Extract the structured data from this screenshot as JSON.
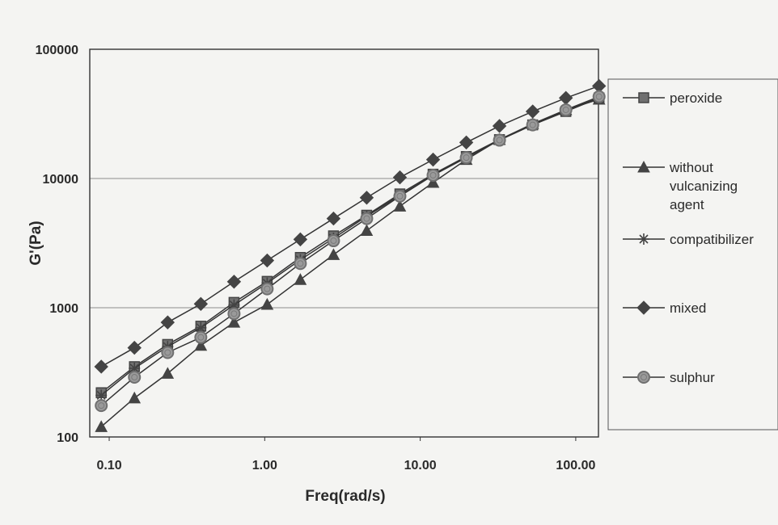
{
  "chart_data": {
    "type": "line",
    "xlabel": "Freq(rad/s)",
    "ylabel": "G'(Pa)",
    "xscale": "log",
    "yscale": "log",
    "xlim": [
      0.075,
      140
    ],
    "ylim": [
      100,
      100000
    ],
    "grid": "horizontal",
    "legend_position": "right",
    "x_tick_labels": [
      "0.10",
      "1.00",
      "10.00",
      "100.00"
    ],
    "y_tick_labels": [
      "100",
      "1000",
      "10000",
      "100000"
    ],
    "x": [
      0.0889,
      0.1453,
      0.2376,
      0.3883,
      0.6349,
      1.037,
      1.695,
      2.77,
      4.527,
      7.401,
      12.1,
      19.78,
      32.33,
      52.86,
      86.4,
      141.2
    ],
    "series": [
      {
        "name": "peroxide",
        "marker": "square",
        "values": [
          220,
          350,
          520,
          720,
          1100,
          1600,
          2450,
          3600,
          5200,
          7600,
          10800,
          14800,
          20000,
          26000,
          33000,
          42000
        ]
      },
      {
        "name": "without vulcanizing agent",
        "marker": "triangle",
        "values": [
          120,
          200,
          310,
          510,
          770,
          1060,
          1650,
          2570,
          3950,
          6100,
          9300,
          14000,
          20000,
          26500,
          34000,
          41000
        ]
      },
      {
        "name": "compatibilizer",
        "marker": "asterisk",
        "values": [
          210,
          340,
          500,
          700,
          1050,
          1550,
          2350,
          3450,
          5100,
          7400,
          10600,
          14600,
          19900,
          26000,
          33500,
          43000
        ]
      },
      {
        "name": "mixed",
        "marker": "diamond",
        "values": [
          350,
          490,
          770,
          1070,
          1590,
          2320,
          3380,
          4900,
          7100,
          10200,
          14000,
          19000,
          25500,
          33000,
          42000,
          52000
        ]
      },
      {
        "name": "sulphur",
        "marker": "circle",
        "values": [
          175,
          290,
          450,
          590,
          900,
          1400,
          2200,
          3300,
          4900,
          7300,
          10600,
          14500,
          19800,
          26000,
          34000,
          43000
        ]
      }
    ],
    "legend_lines": {
      "peroxide": [
        "peroxide"
      ],
      "without vulcanizing agent": [
        "without",
        "vulcanizing",
        "agent"
      ],
      "compatibilizer": [
        "compatibilizer"
      ],
      "mixed": [
        "mixed"
      ],
      "sulphur": [
        "sulphur"
      ]
    },
    "colors": {
      "line": "#333333",
      "marker_dark": "#444444",
      "marker_mid": "#707070",
      "circle_fill": "#9a9a9a",
      "gridline": "#8c8c8c",
      "frame": "#333333"
    }
  }
}
